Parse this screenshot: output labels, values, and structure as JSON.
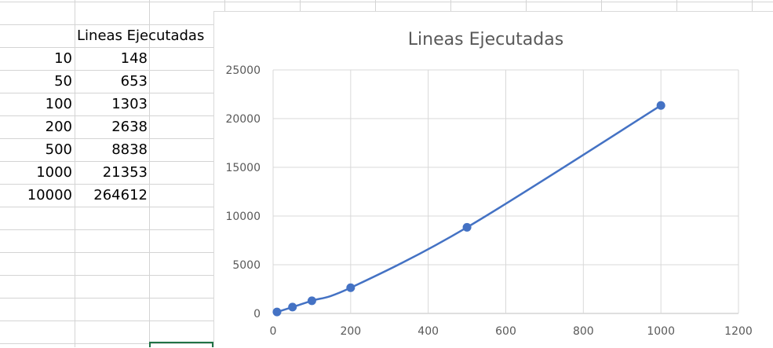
{
  "sheet": {
    "header_label": "Lineas Ejecutadas",
    "rows": [
      {
        "n": "10",
        "lines": "148"
      },
      {
        "n": "50",
        "lines": "653"
      },
      {
        "n": "100",
        "lines": "1303"
      },
      {
        "n": "200",
        "lines": "2638"
      },
      {
        "n": "500",
        "lines": "8838"
      },
      {
        "n": "1000",
        "lines": "21353"
      },
      {
        "n": "10000",
        "lines": "264612"
      }
    ]
  },
  "chart_data": {
    "type": "scatter",
    "title": "Lineas Ejecutadas",
    "xlabel": "",
    "ylabel": "",
    "xlim": [
      0,
      1200
    ],
    "ylim": [
      0,
      25000
    ],
    "x_ticks": [
      "0",
      "200",
      "400",
      "600",
      "800",
      "1000",
      "1200"
    ],
    "y_ticks": [
      "0",
      "5000",
      "10000",
      "15000",
      "20000",
      "25000"
    ],
    "grid": true,
    "smooth_line": true,
    "series": [
      {
        "x": [
          10,
          50,
          100,
          200,
          500,
          1000
        ],
        "y": [
          148,
          653,
          1303,
          2638,
          8838,
          21353
        ],
        "color": "#4472c4"
      }
    ]
  }
}
